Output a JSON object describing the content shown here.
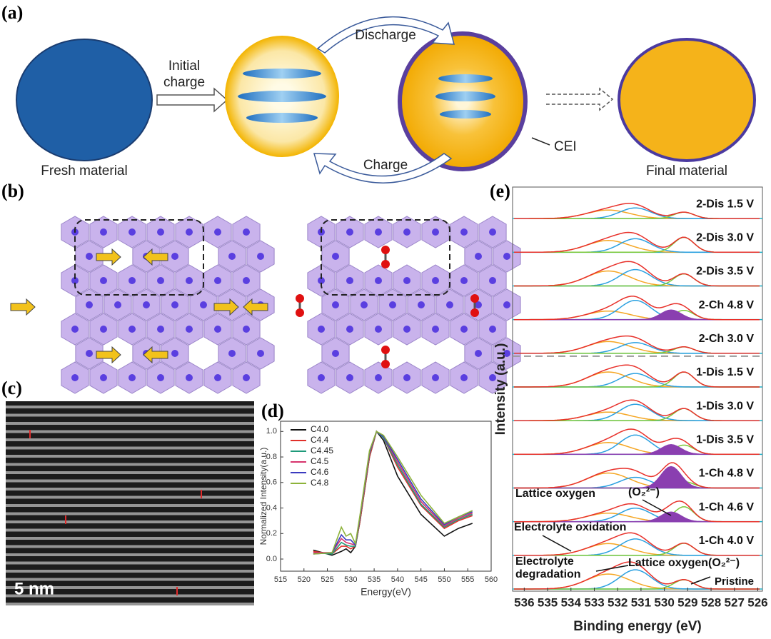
{
  "panels": {
    "a": "(a)",
    "b": "(b)",
    "c": "(c)",
    "d": "(d)",
    "e": "(e)"
  },
  "panel_a": {
    "initial_charge": [
      "Initial",
      "charge"
    ],
    "discharge": "Discharge",
    "charge": "Charge",
    "cei": "CEI",
    "fresh": "Fresh material",
    "final": "Final material"
  },
  "panel_c": {
    "scale": "5 nm"
  },
  "chart_data": [
    {
      "type": "line",
      "xlabel": "Energy(eV)",
      "ylabel": "Normalized Intensity(a.u.)",
      "x": [
        522,
        526,
        528,
        529,
        530,
        531,
        532,
        534,
        535.5,
        537,
        540,
        545,
        550,
        553,
        556
      ],
      "series": [
        {
          "name": "C4.0",
          "color": "#111111",
          "values": [
            0.07,
            0.03,
            0.06,
            0.08,
            0.05,
            0.1,
            0.3,
            0.8,
            1.0,
            0.93,
            0.65,
            0.35,
            0.18,
            0.24,
            0.28
          ]
        },
        {
          "name": "C4.4",
          "color": "#e0302a",
          "values": [
            0.06,
            0.04,
            0.1,
            0.1,
            0.08,
            0.1,
            0.3,
            0.8,
            1.0,
            0.95,
            0.72,
            0.42,
            0.24,
            0.3,
            0.34
          ]
        },
        {
          "name": "C4.45",
          "color": "#1e9a7a",
          "values": [
            0.05,
            0.04,
            0.13,
            0.11,
            0.1,
            0.1,
            0.32,
            0.82,
            1.0,
            0.95,
            0.74,
            0.43,
            0.25,
            0.31,
            0.35
          ]
        },
        {
          "name": "C4.5",
          "color": "#d6336c",
          "values": [
            0.05,
            0.05,
            0.16,
            0.13,
            0.12,
            0.11,
            0.33,
            0.83,
            1.0,
            0.96,
            0.76,
            0.45,
            0.26,
            0.32,
            0.36
          ]
        },
        {
          "name": "C4.6",
          "color": "#3b3bbf",
          "values": [
            0.04,
            0.05,
            0.19,
            0.15,
            0.15,
            0.11,
            0.34,
            0.84,
            1.0,
            0.96,
            0.78,
            0.47,
            0.27,
            0.33,
            0.37
          ]
        },
        {
          "name": "C4.8",
          "color": "#8db33a",
          "values": [
            0.04,
            0.05,
            0.25,
            0.18,
            0.2,
            0.12,
            0.35,
            0.85,
            1.0,
            0.97,
            0.8,
            0.5,
            0.28,
            0.33,
            0.38
          ]
        }
      ],
      "xlim": [
        515,
        560
      ],
      "xticks": [
        515,
        520,
        525,
        530,
        535,
        540,
        545,
        550,
        555,
        560
      ],
      "ylim": [
        -0.095,
        1.08
      ],
      "yticks": [
        {
          "value": 0,
          "label": "0.0"
        },
        0.2,
        0.4,
        0.6,
        0.8,
        {
          "value": 1,
          "label": "1.0"
        }
      ],
      "legend": "upper-left"
    },
    {
      "type": "stacked-spectra",
      "xlabel": "Binding energy (eV)",
      "ylabel": "Intensity (a.u.)",
      "xlim": [
        536.5,
        525.8
      ],
      "xticks": [
        536,
        535,
        534,
        533,
        532,
        531,
        530,
        529,
        528,
        527,
        526
      ],
      "spectra": [
        "2-Dis 1.5 V",
        "2-Dis 3.0 V",
        "2-Dis 3.5 V",
        "2-Ch 4.8 V",
        "2-Ch 3.0 V",
        "1-Dis 1.5 V",
        "1-Dis 3.0 V",
        "1-Dis 3.5 V",
        "1-Ch 4.8 V",
        "1-Ch 4.6 V",
        "1-Ch 4.0 V",
        "Pristine"
      ],
      "annotations": {
        "lattice_oxygen": "Lattice oxygen",
        "peroxo": "(O₂²⁻)",
        "oxidation": "Electrolyte oxidation",
        "degradation": [
          "Electrolyte",
          "degradation"
        ],
        "lattice_peroxo": "Lattice oxygen(O₂²⁻)"
      }
    }
  ]
}
